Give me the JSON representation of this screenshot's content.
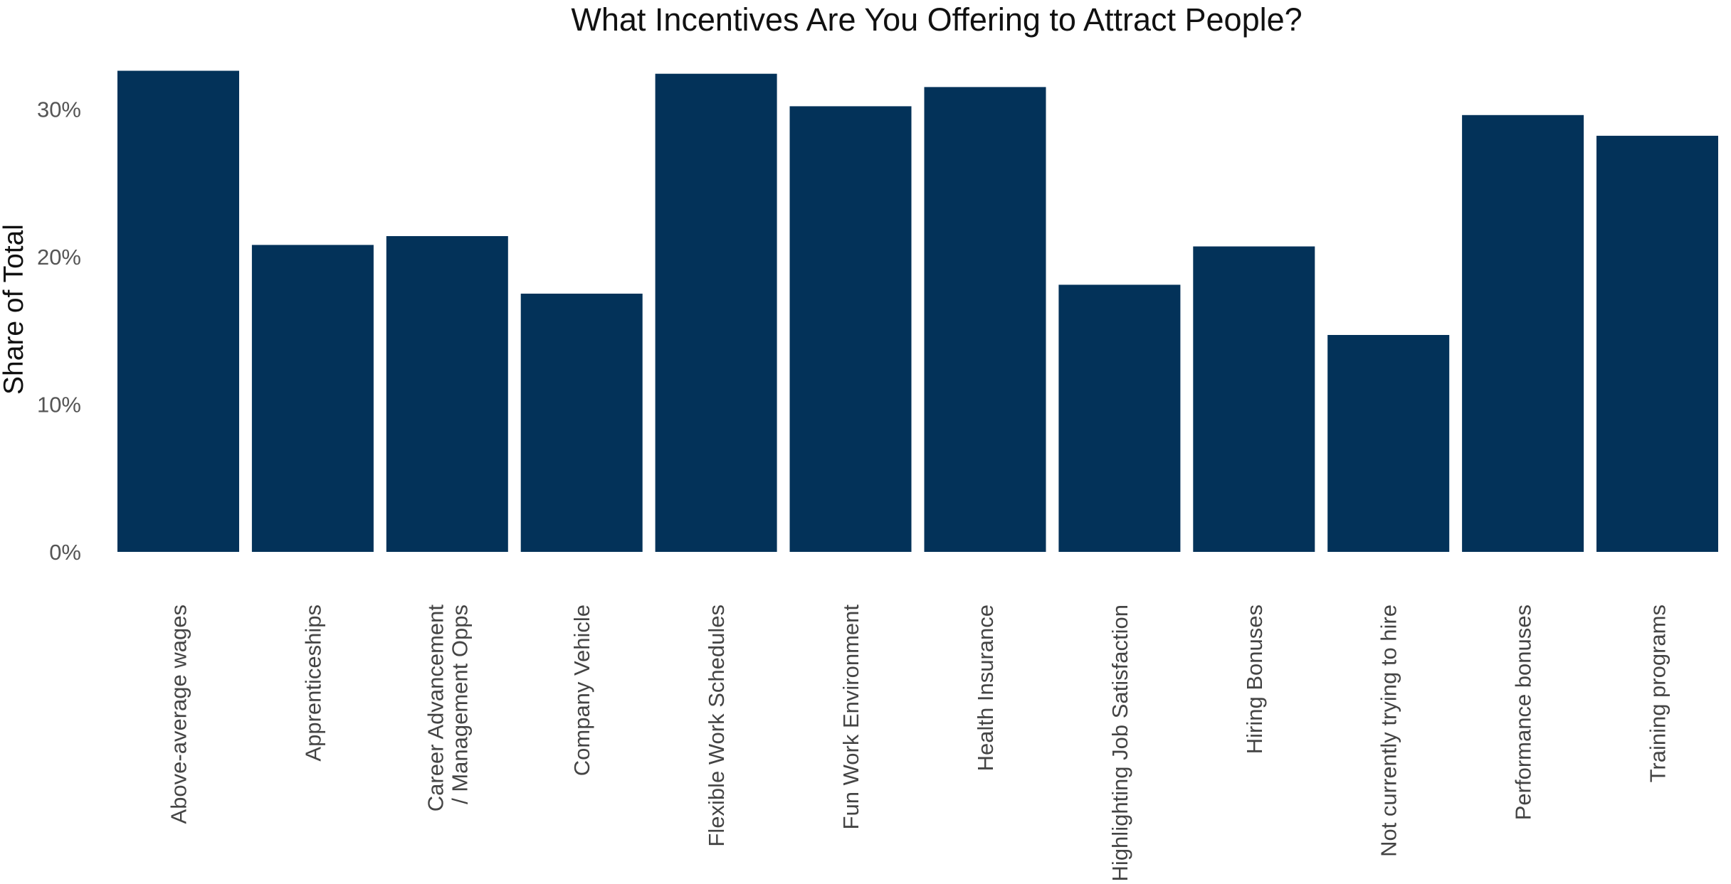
{
  "chart_data": {
    "type": "bar",
    "title": "What Incentives Are You Offering to Attract People?",
    "xlabel": "",
    "ylabel": "Share of Total",
    "ylim": [
      0,
      33.5
    ],
    "yticks": [
      0,
      10,
      20,
      30
    ],
    "ytick_labels": [
      "0%",
      "10%",
      "20%",
      "30%"
    ],
    "grid": false,
    "legend": "none",
    "bar_color": "#033259",
    "categories": [
      "Above-average wages",
      "Apprenticeships",
      "Career Advancement\n/ Management Opps",
      "Company Vehicle",
      "Flexible Work Schedules",
      "Fun Work Environment",
      "Health Insurance",
      "Highlighting Job Satisfaction",
      "Hiring Bonuses",
      "Not currently trying to hire",
      "Performance bonuses",
      "Training programs"
    ],
    "values": [
      32.6,
      20.8,
      21.4,
      17.5,
      32.4,
      30.2,
      31.5,
      18.1,
      20.7,
      14.7,
      29.6,
      28.2
    ]
  }
}
